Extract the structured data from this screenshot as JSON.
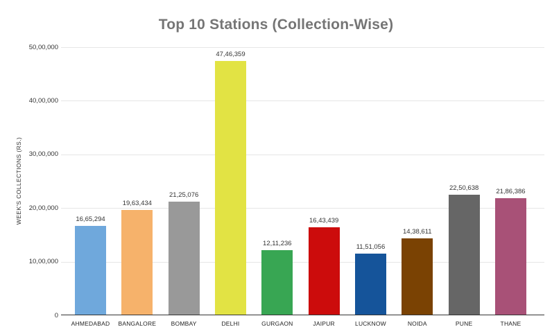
{
  "chart_data": {
    "type": "bar",
    "title": "Top 10 Stations (Collection-Wise)",
    "xlabel": "",
    "ylabel": "WEEK'S COLLECTIONS (RS.)",
    "categories": [
      "AHMEDABAD",
      "BANGALORE",
      "BOMBAY",
      "DELHI",
      "GURGAON",
      "JAIPUR",
      "LUCKNOW",
      "NOIDA",
      "PUNE",
      "THANE"
    ],
    "values": [
      1665294,
      1963434,
      2125076,
      4746359,
      1211236,
      1643439,
      1151056,
      1438611,
      2250638,
      2186386
    ],
    "value_labels": [
      "16,65,294",
      "19,63,434",
      "21,25,076",
      "47,46,359",
      "12,11,236",
      "16,43,439",
      "11,51,056",
      "14,38,611",
      "22,50,638",
      "21,86,386"
    ],
    "bar_colors": [
      "#6fa8dc",
      "#f6b26b",
      "#999999",
      "#e2e344",
      "#38a653",
      "#cc0c0c",
      "#15549a",
      "#7a4203",
      "#666666",
      "#a85177"
    ],
    "ylim": [
      0,
      5000000
    ],
    "ytick_values": [
      0,
      1000000,
      2000000,
      3000000,
      4000000,
      5000000
    ],
    "ytick_labels": [
      "0",
      "10,00,000",
      "20,00,000",
      "30,00,000",
      "40,00,000",
      "50,00,000"
    ],
    "grid": true,
    "legend_position": "none"
  },
  "colors": {
    "background": "#ffffff",
    "title": "#757575",
    "gridline": "#e6e6e6",
    "axis_line": "#333333",
    "tick_label": "#333333",
    "value_label": "#333333",
    "category_label": "#222222"
  }
}
